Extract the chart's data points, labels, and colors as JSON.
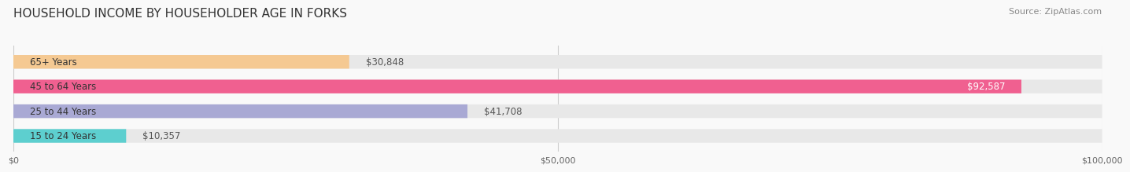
{
  "title": "HOUSEHOLD INCOME BY HOUSEHOLDER AGE IN FORKS",
  "source": "Source: ZipAtlas.com",
  "categories": [
    "15 to 24 Years",
    "25 to 44 Years",
    "45 to 64 Years",
    "65+ Years"
  ],
  "values": [
    10357,
    41708,
    92587,
    30848
  ],
  "bar_colors": [
    "#5dcfcf",
    "#a9a9d4",
    "#f06090",
    "#f5c992"
  ],
  "bar_bg_color": "#e8e8e8",
  "xlim": [
    0,
    100000
  ],
  "xticks": [
    0,
    50000,
    100000
  ],
  "xtick_labels": [
    "$0",
    "$50,000",
    "$100,000"
  ],
  "title_fontsize": 11,
  "source_fontsize": 8,
  "label_fontsize": 8.5,
  "value_fontsize": 8.5,
  "bar_height": 0.55,
  "background_color": "#f9f9f9"
}
